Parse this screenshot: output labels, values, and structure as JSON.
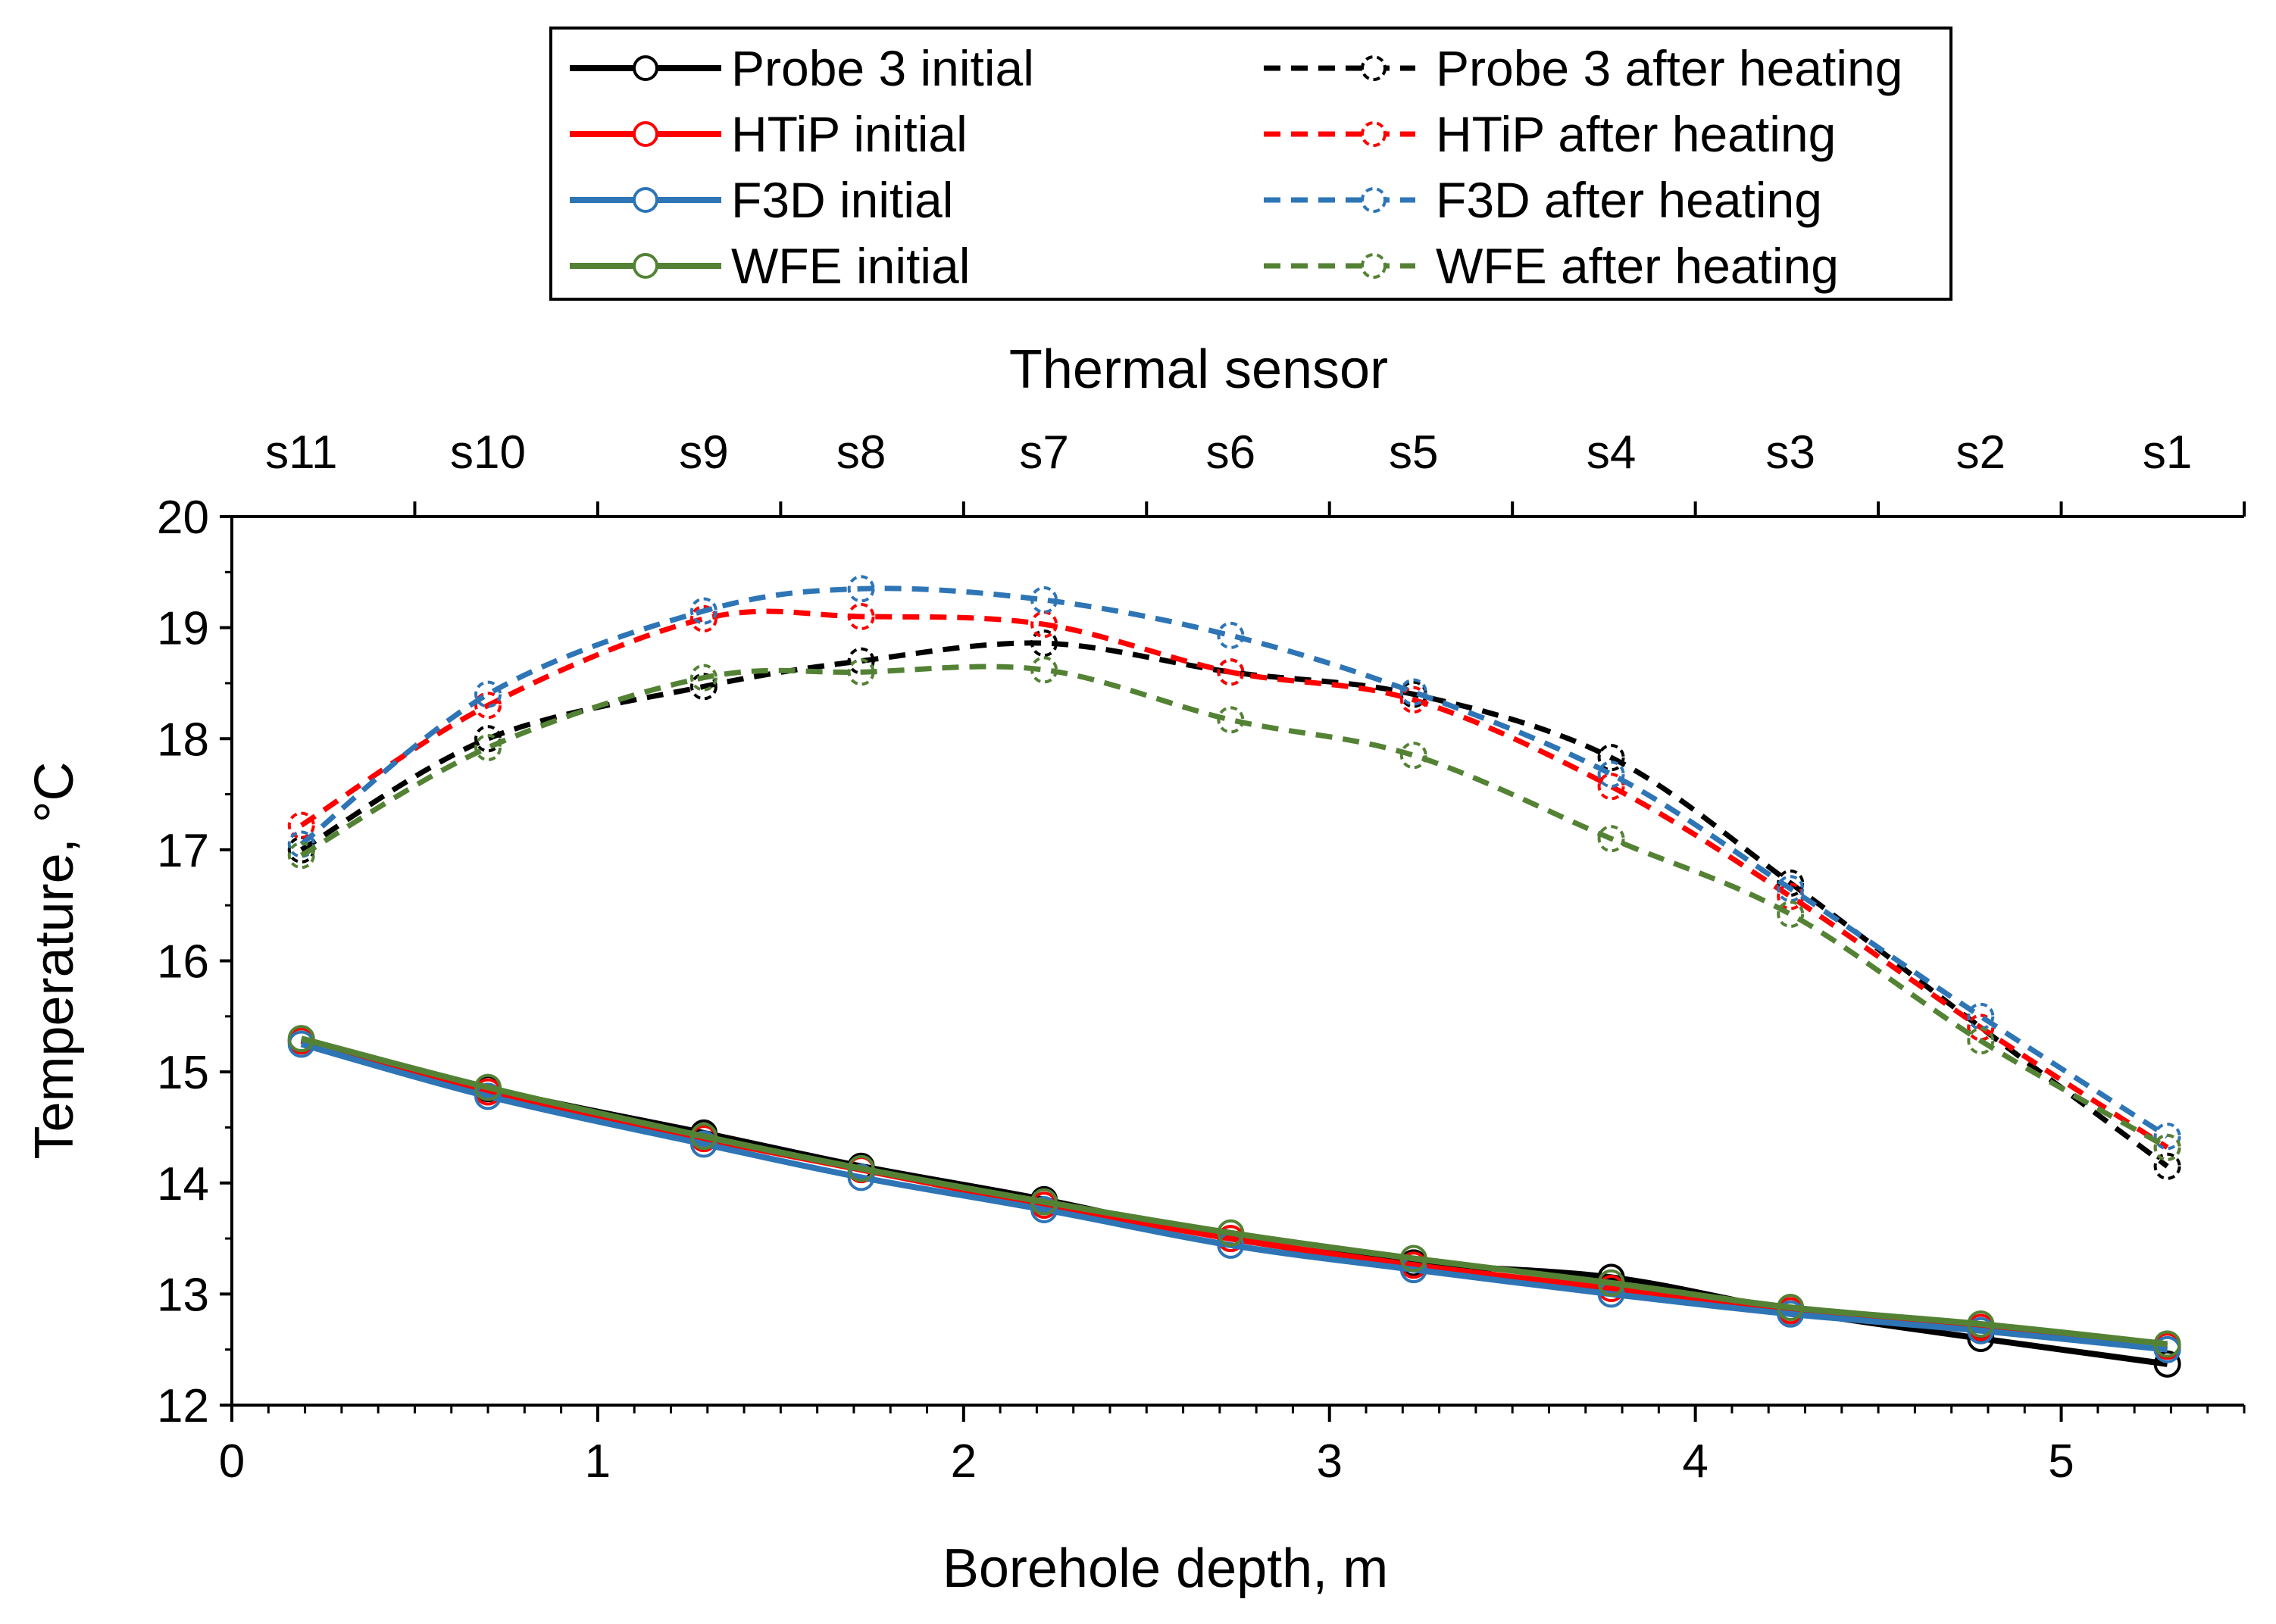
{
  "chart_data": {
    "type": "line",
    "xlabel": "Borehole depth, m",
    "ylabel": "Temperature, °C",
    "top_axis_title": "Thermal sensor",
    "xlim": [
      0,
      5.5
    ],
    "ylim": [
      12,
      20
    ],
    "x_ticks": [
      "0",
      "1",
      "2",
      "3",
      "4",
      "5"
    ],
    "y_ticks": [
      "12",
      "13",
      "14",
      "15",
      "16",
      "17",
      "18",
      "19",
      "20"
    ],
    "x": [
      0.19,
      0.7,
      1.29,
      1.72,
      2.22,
      2.73,
      3.23,
      3.77,
      4.26,
      4.78,
      5.29
    ],
    "sensors": [
      "s11",
      "s10",
      "s9",
      "s8",
      "s7",
      "s6",
      "s5",
      "s4",
      "s3",
      "s2",
      "s1"
    ],
    "legend_position": "top",
    "series": [
      {
        "name": "Probe 3 initial",
        "color": "#000000",
        "style": "solid",
        "values": [
          15.28,
          14.85,
          14.45,
          14.15,
          13.85,
          13.5,
          13.28,
          13.15,
          12.85,
          12.6,
          12.37
        ]
      },
      {
        "name": "Probe 3 after heating",
        "color": "#000000",
        "style": "dashed",
        "values": [
          17.0,
          18.0,
          18.47,
          18.7,
          18.86,
          18.6,
          18.4,
          17.83,
          16.7,
          15.4,
          14.15
        ]
      },
      {
        "name": "HTiP initial",
        "color": "#ff0000",
        "style": "solid",
        "values": [
          15.28,
          14.82,
          14.4,
          14.12,
          13.8,
          13.5,
          13.26,
          13.05,
          12.85,
          12.7,
          12.53
        ]
      },
      {
        "name": "HTiP after heating",
        "color": "#ff0000",
        "style": "dashed",
        "values": [
          17.22,
          18.3,
          19.08,
          19.1,
          19.03,
          18.6,
          18.35,
          17.57,
          16.58,
          15.4,
          14.32
        ]
      },
      {
        "name": "F3D initial",
        "color": "#2e75b6",
        "style": "solid",
        "values": [
          15.25,
          14.78,
          14.35,
          14.05,
          13.76,
          13.44,
          13.22,
          13.0,
          12.82,
          12.67,
          12.5
        ]
      },
      {
        "name": "F3D after heating",
        "color": "#2e75b6",
        "style": "dashed",
        "values": [
          17.05,
          18.4,
          19.15,
          19.35,
          19.25,
          18.93,
          18.42,
          17.68,
          16.65,
          15.5,
          14.42
        ]
      },
      {
        "name": "WFE initial",
        "color": "#548235",
        "style": "solid",
        "values": [
          15.3,
          14.86,
          14.42,
          14.13,
          13.83,
          13.55,
          13.32,
          13.1,
          12.88,
          12.73,
          12.55
        ]
      },
      {
        "name": "WFE after heating",
        "color": "#548235",
        "style": "dashed",
        "values": [
          16.95,
          17.92,
          18.55,
          18.6,
          18.62,
          18.17,
          17.85,
          17.1,
          16.42,
          15.28,
          14.32
        ]
      }
    ]
  }
}
